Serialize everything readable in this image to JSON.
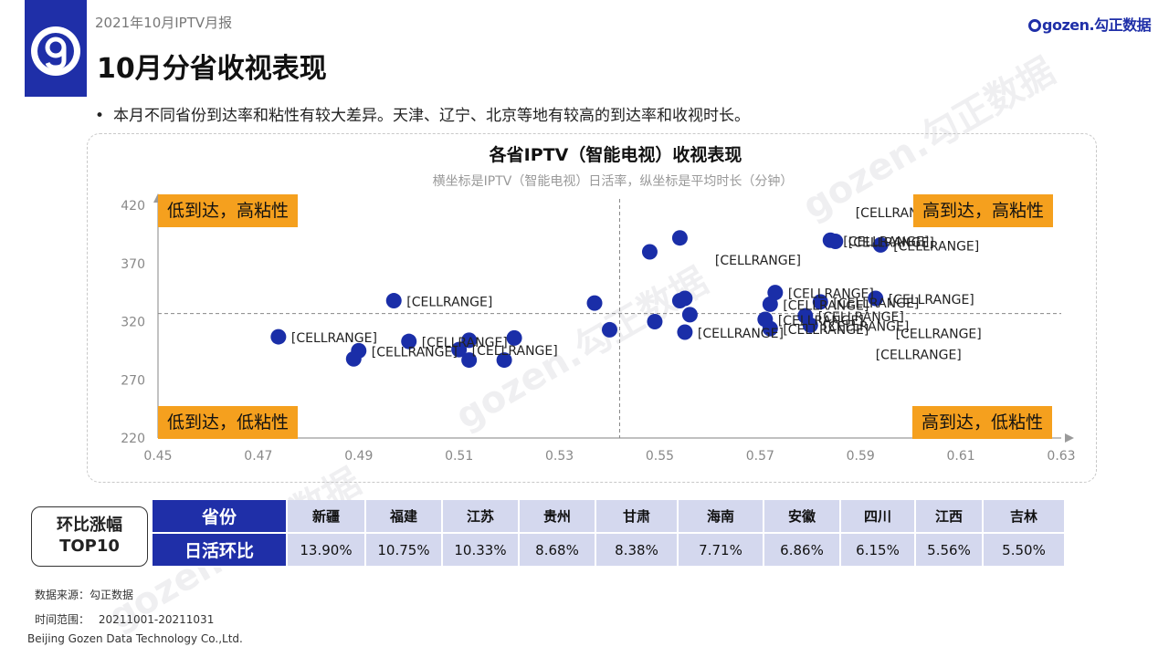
{
  "header": {
    "report_label": "2021年10月IPTV月报",
    "page_title": "10月分省收视表现",
    "brand": "gozen.勾正数据"
  },
  "bullet": "本月不同省份到达率和粘性有较大差异。天津、辽宁、北京等地有较高的到达率和收视时长。",
  "bullet_marker": "•",
  "colors": {
    "accent": "#1f2fa8",
    "quadrant": "#f5a01e",
    "point": "#1a2ea8",
    "table_cell": "#d4d8ee"
  },
  "quadrants": {
    "top_left": "低到达，高粘性",
    "top_right": "高到达，高粘性",
    "bottom_left": "低到达，低粘性",
    "bottom_right": "高到达，低粘性"
  },
  "chart_data": {
    "type": "scatter",
    "title": "各省IPTV（智能电视）收视表现",
    "subtitle": "横坐标是IPTV（智能电视）日活率，纵坐标是平均时长（分钟）",
    "xlabel": "",
    "ylabel": "",
    "xlim": [
      0.45,
      0.63
    ],
    "ylim": [
      220,
      420
    ],
    "xticks": [
      "0.45",
      "0.47",
      "0.49",
      "0.51",
      "0.53",
      "0.55",
      "0.57",
      "0.59",
      "0.61",
      "0.63"
    ],
    "yticks": [
      "220",
      "270",
      "320",
      "370",
      "420"
    ],
    "x_ref": 0.542,
    "y_ref": 327,
    "grid": false,
    "points": [
      {
        "x": 0.474,
        "y": 307,
        "label": "[CELLRANGE]"
      },
      {
        "x": 0.489,
        "y": 288,
        "label": ""
      },
      {
        "x": 0.49,
        "y": 295,
        "label": "[CELLRANGE]"
      },
      {
        "x": 0.497,
        "y": 338,
        "label": "[CELLRANGE]"
      },
      {
        "x": 0.5,
        "y": 303,
        "label": "[CELLRANGE]"
      },
      {
        "x": 0.51,
        "y": 296,
        "label": "[CELLRANGE]"
      },
      {
        "x": 0.512,
        "y": 304,
        "label": ""
      },
      {
        "x": 0.512,
        "y": 287,
        "label": ""
      },
      {
        "x": 0.519,
        "y": 287,
        "label": ""
      },
      {
        "x": 0.521,
        "y": 306,
        "label": ""
      },
      {
        "x": 0.537,
        "y": 336,
        "label": ""
      },
      {
        "x": 0.54,
        "y": 313,
        "label": ""
      },
      {
        "x": 0.548,
        "y": 380,
        "label": ""
      },
      {
        "x": 0.549,
        "y": 320,
        "label": ""
      },
      {
        "x": 0.554,
        "y": 392,
        "label": ""
      },
      {
        "x": 0.554,
        "y": 338,
        "label": ""
      },
      {
        "x": 0.555,
        "y": 340,
        "label": ""
      },
      {
        "x": 0.555,
        "y": 311,
        "label": "[CELLRANGE]"
      },
      {
        "x": 0.556,
        "y": 326,
        "label": ""
      },
      {
        "x": 0.571,
        "y": 322,
        "label": "[CELLRANGE]"
      },
      {
        "x": 0.572,
        "y": 335,
        "label": "[CELLRANGE]"
      },
      {
        "x": 0.572,
        "y": 314,
        "label": "[CELLRANGE]"
      },
      {
        "x": 0.573,
        "y": 345,
        "label": "[CELLRANGE]"
      },
      {
        "x": 0.579,
        "y": 325,
        "label": "[CELLRANGE]"
      },
      {
        "x": 0.58,
        "y": 317,
        "label": "[CELLRANGE]"
      },
      {
        "x": 0.582,
        "y": 337,
        "label": "[CELLRANGE]"
      },
      {
        "x": 0.584,
        "y": 390,
        "label": "[CELLRANGE]"
      },
      {
        "x": 0.585,
        "y": 389,
        "label": "[CELLRANGE]"
      },
      {
        "x": 0.593,
        "y": 340,
        "label": "[CELLRANGE]"
      },
      {
        "x": 0.594,
        "y": 386,
        "label": "[CELLRANGE]"
      }
    ],
    "extra_labels": [
      {
        "x": 0.561,
        "y": 369,
        "label": "[CELLRANGE]"
      },
      {
        "x": 0.597,
        "y": 306,
        "label": "[CELLRANGE]"
      },
      {
        "x": 0.593,
        "y": 288,
        "label": "[CELLRANGE]"
      },
      {
        "x": 0.589,
        "y": 410,
        "label": "[CELLRANGE]"
      }
    ]
  },
  "table": {
    "badge_line1": "环比涨幅",
    "badge_line2": "TOP10",
    "row1_head": "省份",
    "row2_head": "日活环比",
    "provinces": [
      "新疆",
      "福建",
      "江苏",
      "贵州",
      "甘肃",
      "海南",
      "安徽",
      "四川",
      "江西",
      "吉林"
    ],
    "values": [
      "13.90%",
      "10.75%",
      "10.33%",
      "8.68%",
      "8.38%",
      "7.71%",
      "6.86%",
      "6.15%",
      "5.56%",
      "5.50%"
    ]
  },
  "footer": {
    "source": "数据来源：勾正数据",
    "range_label": "时间范围：",
    "range_value": "20211001-20211031",
    "company": "Beijing Gozen Data Technology Co.,Ltd."
  }
}
